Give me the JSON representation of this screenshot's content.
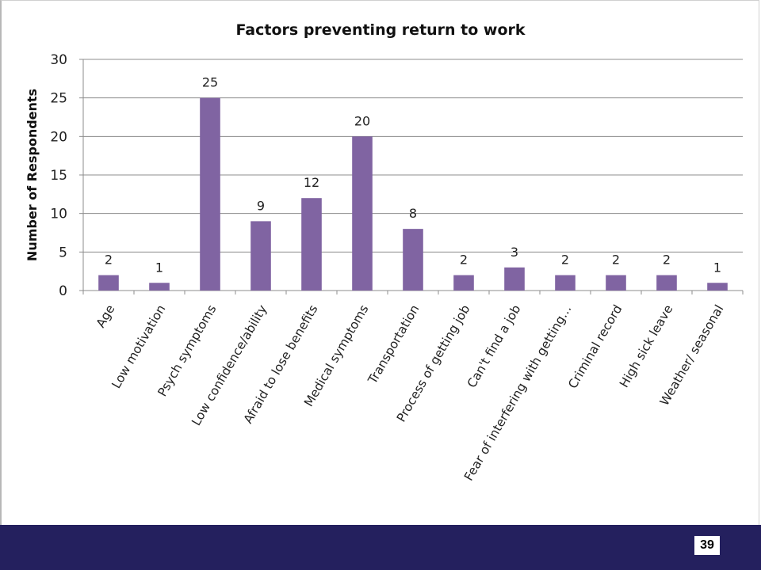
{
  "slide": {
    "page_number": "39",
    "footer_color": "#24205e"
  },
  "chart_data": {
    "type": "bar",
    "title": "Factors preventing return to work",
    "xlabel": "",
    "ylabel": "Number of Respondents",
    "ylim": [
      0,
      30
    ],
    "yticks": [
      0,
      5,
      10,
      15,
      20,
      25,
      30
    ],
    "grid": true,
    "bar_color": "#8064a2",
    "categories": [
      "Age",
      "Low motivation",
      "Psych symptoms",
      "Low confidence/ability",
      "Afraid to lose benefits",
      "Medical symptoms",
      "Transportation",
      "Process of getting job",
      "Can't find a job",
      "Fear of interfering with getting…",
      "Criminal record",
      "High sick leave",
      "Weather/ seasonal"
    ],
    "values": [
      2,
      1,
      25,
      9,
      12,
      20,
      8,
      2,
      3,
      2,
      2,
      2,
      1
    ]
  }
}
